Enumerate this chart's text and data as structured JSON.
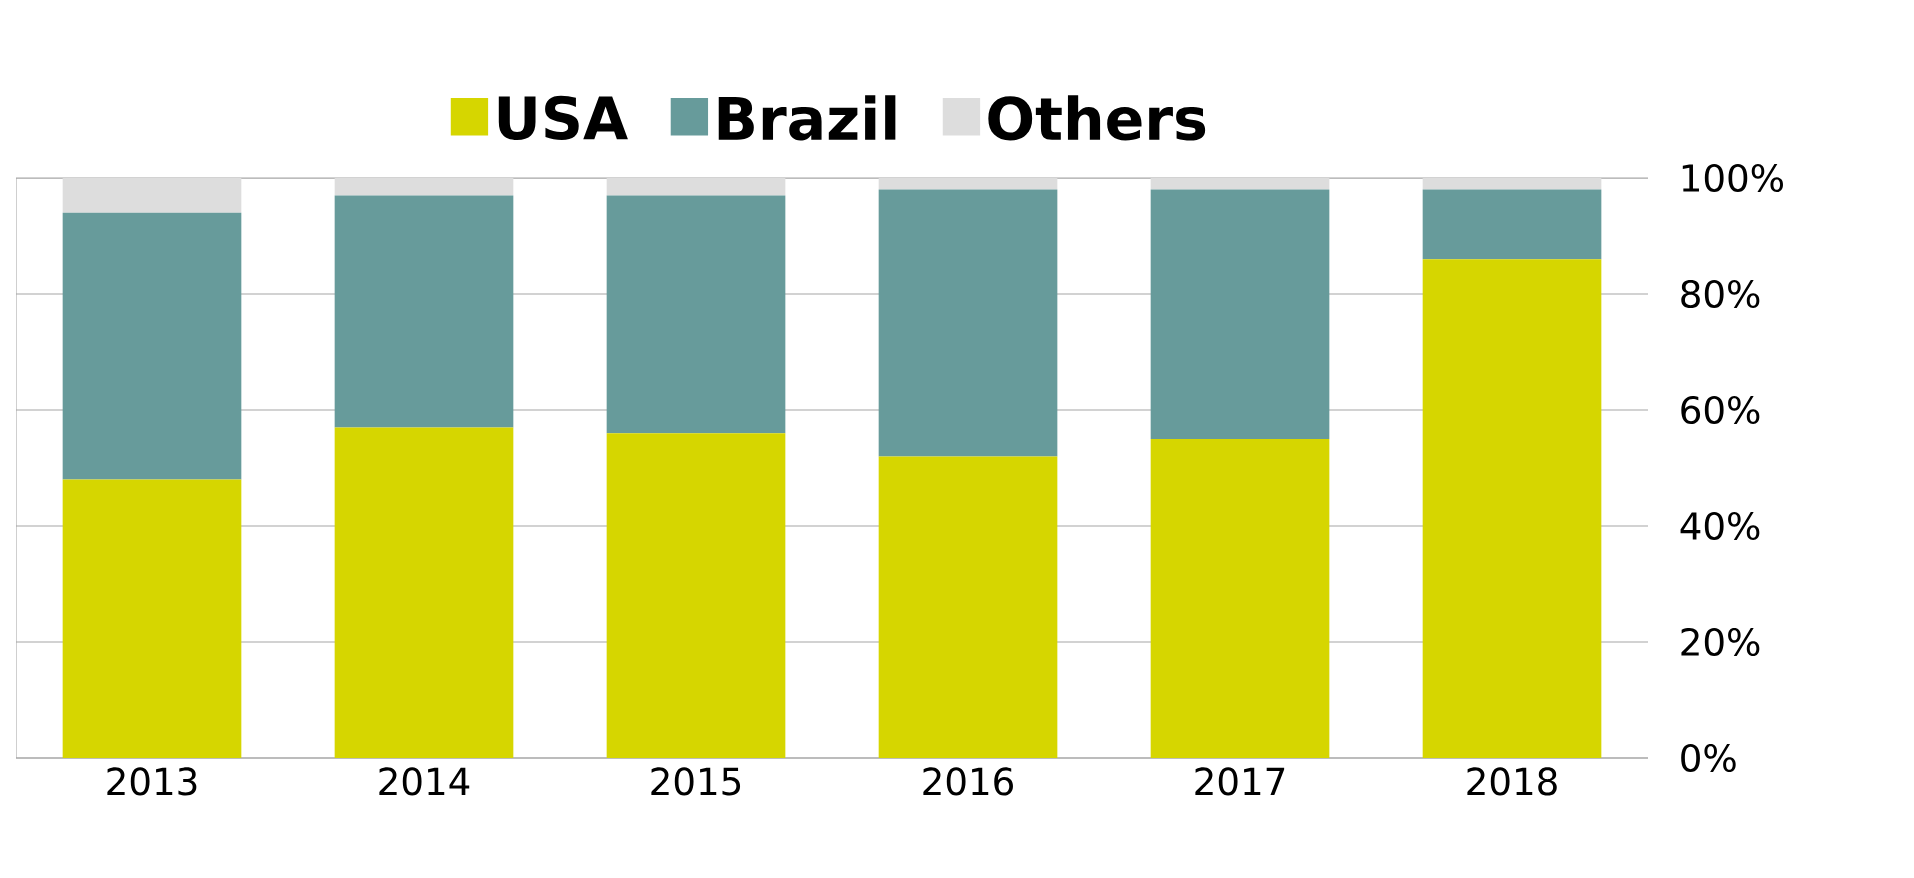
{
  "chart_data": {
    "type": "bar",
    "stacked": true,
    "categories": [
      "2013",
      "2014",
      "2015",
      "2016",
      "2017",
      "2018"
    ],
    "series": [
      {
        "name": "USA",
        "color": "#d6d600",
        "values": [
          48,
          57,
          56,
          52,
          55,
          86
        ]
      },
      {
        "name": "Brazil",
        "color": "#679b9b",
        "values": [
          46,
          40,
          41,
          46,
          43,
          12
        ]
      },
      {
        "name": "Others",
        "color": "#dddddd",
        "values": [
          6,
          3,
          3,
          2,
          2,
          2
        ]
      }
    ],
    "ylim": [
      0,
      100
    ],
    "yticks": [
      {
        "value": 0,
        "label": "0%"
      },
      {
        "value": 20,
        "label": "20%"
      },
      {
        "value": 40,
        "label": "40%"
      },
      {
        "value": 60,
        "label": "60%"
      },
      {
        "value": 80,
        "label": "80%"
      },
      {
        "value": 100,
        "label": "100%"
      }
    ],
    "grid": "y",
    "legend": "top"
  }
}
